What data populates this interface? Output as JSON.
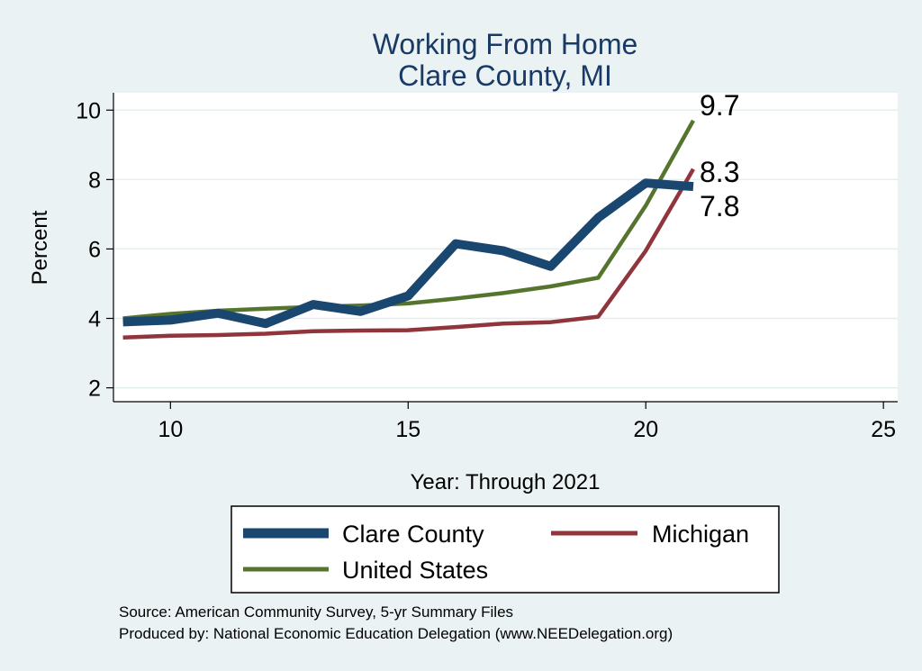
{
  "chart_data": {
    "type": "line",
    "title": "Working From Home",
    "subtitle": "Clare County, MI",
    "xlabel": "Year: Through 2021",
    "ylabel": "Percent",
    "xlim": [
      8.8,
      25.3
    ],
    "ylim": [
      1.6,
      10.5
    ],
    "x_ticks": [
      10,
      15,
      20,
      25
    ],
    "y_ticks": [
      2,
      4,
      6,
      8,
      10
    ],
    "grid": true,
    "series": [
      {
        "name": "Clare County",
        "color": "#1a476f",
        "x": [
          9,
          10,
          11,
          12,
          13,
          14,
          15,
          16,
          17,
          18,
          19,
          20,
          21
        ],
        "y": [
          3.9,
          3.95,
          4.15,
          3.85,
          4.4,
          4.2,
          4.65,
          6.15,
          5.95,
          5.5,
          6.9,
          7.9,
          7.8
        ]
      },
      {
        "name": "Michigan",
        "color": "#90353b",
        "x": [
          9,
          10,
          11,
          12,
          13,
          14,
          15,
          16,
          17,
          18,
          19,
          20,
          21
        ],
        "y": [
          3.45,
          3.5,
          3.52,
          3.56,
          3.63,
          3.65,
          3.66,
          3.75,
          3.85,
          3.89,
          4.05,
          5.95,
          8.3
        ]
      },
      {
        "name": "United States",
        "color": "#55752f",
        "x": [
          9,
          10,
          11,
          12,
          13,
          14,
          15,
          16,
          17,
          18,
          19,
          20,
          21
        ],
        "y": [
          4.0,
          4.13,
          4.22,
          4.28,
          4.33,
          4.37,
          4.43,
          4.57,
          4.73,
          4.92,
          5.17,
          7.25,
          9.7
        ]
      }
    ],
    "end_labels": [
      {
        "series": "United States",
        "text": "9.7"
      },
      {
        "series": "Michigan",
        "text": "8.3"
      },
      {
        "series": "Clare County",
        "text": "7.8"
      }
    ],
    "legend": {
      "placement": "bottom",
      "items": [
        "Clare County",
        "Michigan",
        "United States"
      ]
    },
    "notes": [
      "Source: American Community Survey, 5-yr Summary Files",
      "Produced by: National Economic Education Delegation (www.NEEDelegation.org)"
    ]
  }
}
